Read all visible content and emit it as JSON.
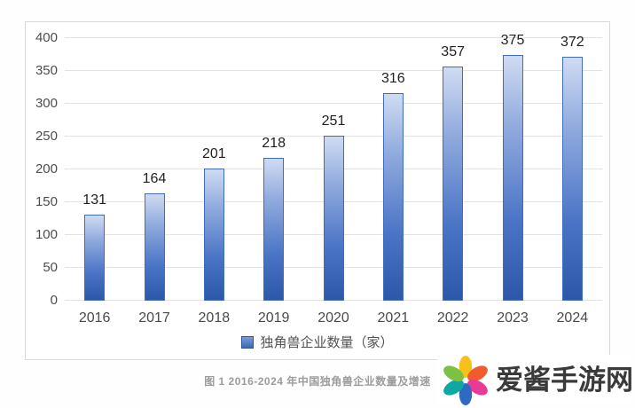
{
  "chart_data": {
    "type": "bar",
    "title": "",
    "categories": [
      "2016",
      "2017",
      "2018",
      "2019",
      "2020",
      "2021",
      "2022",
      "2023",
      "2024"
    ],
    "values": [
      131,
      164,
      201,
      218,
      251,
      316,
      357,
      375,
      372
    ],
    "series_name": "独角兽企业数量（家）",
    "xlabel": "",
    "ylabel": "",
    "ylim": [
      0,
      400
    ],
    "ytick_step": 50,
    "yticks": [
      0,
      50,
      100,
      150,
      200,
      250,
      300,
      350,
      400
    ],
    "grid": "horizontal",
    "legend_position": "bottom",
    "data_labels": true,
    "bar_color_top": "#cfdbf2",
    "bar_color_bottom": "#2d57a9",
    "bar_border_color": "#3f6cbe"
  },
  "legend": {
    "label": "独角兽企业数量（家）"
  },
  "caption": "图 1 2016-2024 年中国独角兽企业数量及增速",
  "watermark": {
    "text": "爱酱手游网",
    "icon": "pinwheel-flower-icon",
    "petal_colors": [
      "#f6c21a",
      "#f15b2e",
      "#e93a96",
      "#2e6bc0",
      "#0ea7a1",
      "#7cc142"
    ],
    "text_color": "#3a3a3a"
  },
  "colors": {
    "panel_border": "#d9d9d9",
    "gridline": "#e3e3e3",
    "axis_text": "#4a4a4a",
    "data_label_text": "#1f1f1f",
    "caption_text": "#9c9c9c",
    "legend_text": "#525252"
  }
}
